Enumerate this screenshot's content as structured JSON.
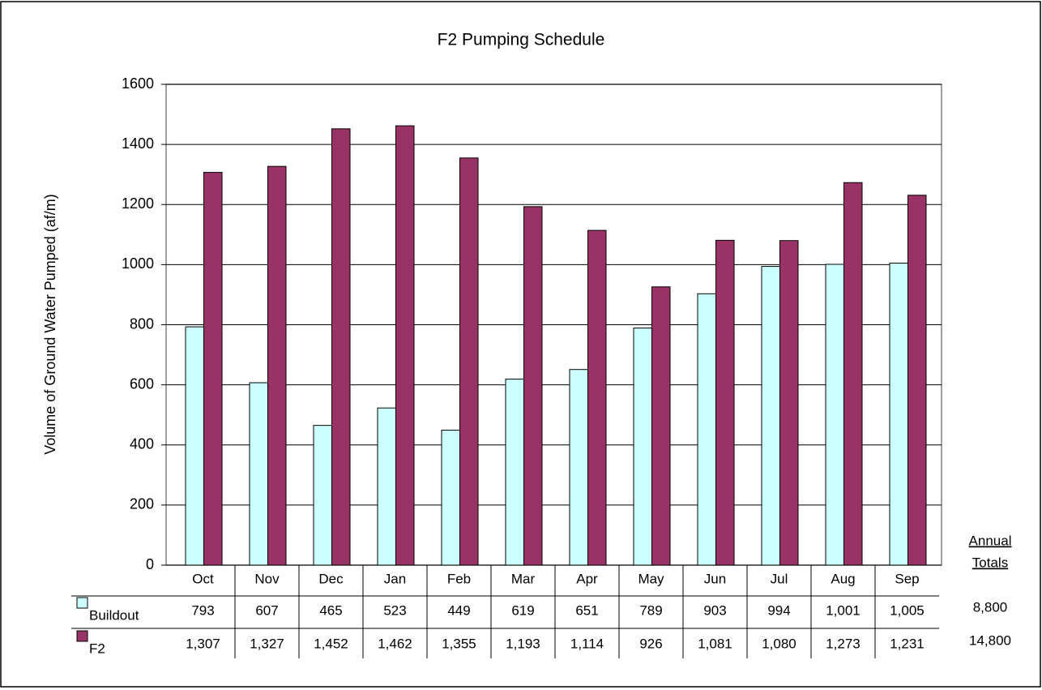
{
  "chart_data": {
    "type": "bar",
    "title": "F2 Pumping Schedule",
    "y_label": "Volume of Ground Water Pumped (af/m)",
    "categories": [
      "Oct",
      "Nov",
      "Dec",
      "Jan",
      "Feb",
      "Mar",
      "Apr",
      "May",
      "Jun",
      "Jul",
      "Aug",
      "Sep"
    ],
    "series": [
      {
        "name": "Buildout",
        "color": "#ccffff",
        "values": [
          793,
          607,
          465,
          523,
          449,
          619,
          651,
          789,
          903,
          994,
          1001,
          1005
        ],
        "value_labels": [
          "793",
          "607",
          "465",
          "523",
          "449",
          "619",
          "651",
          "789",
          "903",
          "994",
          "1,001",
          "1,005"
        ],
        "total": "8,800"
      },
      {
        "name": "F2",
        "color": "#993366",
        "values": [
          1307,
          1327,
          1452,
          1462,
          1355,
          1193,
          1114,
          926,
          1081,
          1080,
          1273,
          1231
        ],
        "value_labels": [
          "1,307",
          "1,327",
          "1,452",
          "1,462",
          "1,355",
          "1,193",
          "1,114",
          "926",
          "1,081",
          "1,080",
          "1,273",
          "1,231"
        ],
        "total": "14,800"
      }
    ],
    "totals_header": [
      "Annual",
      "Totals"
    ],
    "ylim": [
      0,
      1600
    ],
    "yticks": [
      0,
      200,
      400,
      600,
      800,
      1000,
      1200,
      1400,
      1600
    ],
    "grid": true
  }
}
